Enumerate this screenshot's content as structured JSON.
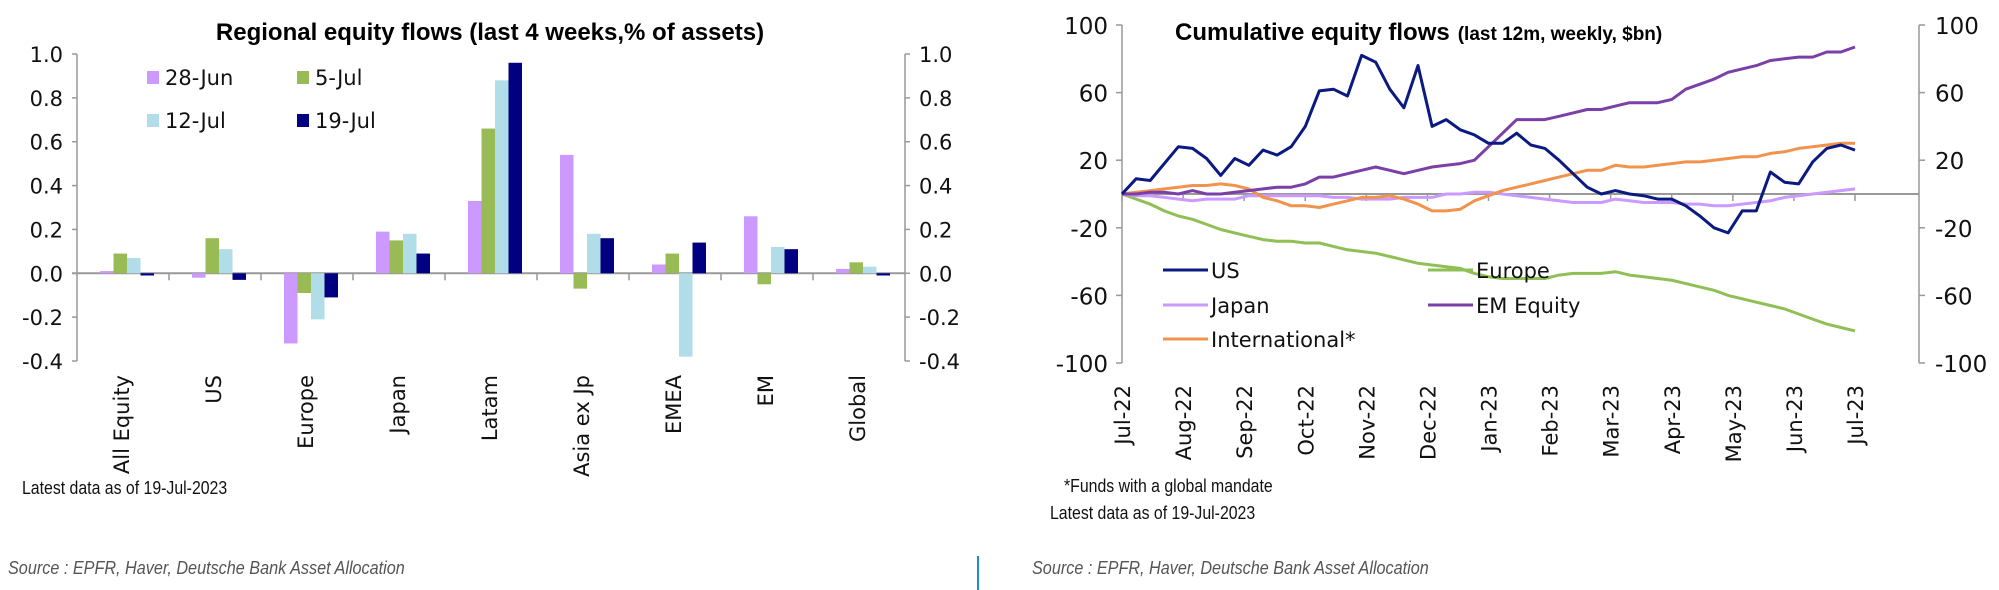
{
  "charts": {
    "left_note": "Latest data as of 19-Jul-2023",
    "left_source": "Source : EPFR, Haver, Deutsche Bank Asset Allocation",
    "right_footnote": "*Funds with a global mandate",
    "right_note": "Latest data as of 19-Jul-2023",
    "right_source": "Source : EPFR, Haver, Deutsche Bank Asset Allocation"
  },
  "chart_data": [
    {
      "type": "bar",
      "title": "Regional equity flows (last 4 weeks,% of assets)",
      "xlabel": "",
      "ylabel": "",
      "ylim": [
        -0.4,
        1.0
      ],
      "yticks": [
        "1.0",
        "0.8",
        "0.6",
        "0.4",
        "0.2",
        "0.0",
        "-0.2",
        "-0.4"
      ],
      "ytick_values": [
        1.0,
        0.8,
        0.6,
        0.4,
        0.2,
        0.0,
        -0.2,
        -0.4
      ],
      "secondary_axis": true,
      "legend_position": "top-left",
      "categories": [
        "All Equity",
        "US",
        "Europe",
        "Japan",
        "Latam",
        "Asia ex Jp",
        "EMEA",
        "EM",
        "Global"
      ],
      "series": [
        {
          "name": "28-Jun",
          "color": "#cc99ff",
          "values": [
            0.01,
            -0.02,
            -0.32,
            0.19,
            0.33,
            0.54,
            0.04,
            0.26,
            0.02
          ]
        },
        {
          "name": "5-Jul",
          "color": "#99bb55",
          "values": [
            0.09,
            0.16,
            -0.09,
            0.15,
            0.66,
            -0.07,
            0.09,
            -0.05,
            0.05
          ]
        },
        {
          "name": "12-Jul",
          "color": "#b0dde8",
          "values": [
            0.07,
            0.11,
            -0.21,
            0.18,
            0.88,
            0.18,
            -0.38,
            0.12,
            0.03
          ]
        },
        {
          "name": "19-Jul",
          "color": "#000080",
          "values": [
            -0.01,
            -0.03,
            -0.11,
            0.09,
            0.96,
            0.16,
            0.14,
            0.11,
            -0.01
          ]
        }
      ]
    },
    {
      "type": "line",
      "title": "Cumulative equity flows",
      "subtitle": "(last 12m, weekly, $bn)",
      "xlabel": "",
      "ylabel": "",
      "ylim": [
        -100,
        100
      ],
      "yticks": [
        "100",
        "60",
        "20",
        "-20",
        "-60",
        "-100"
      ],
      "ytick_values": [
        100,
        60,
        20,
        -20,
        -60,
        -100
      ],
      "secondary_axis": true,
      "legend_position": "bottom-left",
      "x_tick_labels": [
        "Jul-22",
        "Aug-22",
        "Sep-22",
        "Oct-22",
        "Nov-22",
        "Dec-22",
        "Jan-23",
        "Feb-23",
        "Mar-23",
        "Apr-23",
        "May-23",
        "Jun-23",
        "Jul-23"
      ],
      "x_weeks": 53,
      "series": [
        {
          "name": "US",
          "color": "#0a1a80",
          "values": [
            0,
            9,
            8,
            18,
            28,
            27,
            21,
            11,
            21,
            17,
            26,
            23,
            28,
            40,
            61,
            62,
            58,
            82,
            78,
            62,
            51,
            76,
            40,
            44,
            38,
            35,
            30,
            30,
            36,
            29,
            27,
            20,
            12,
            4,
            0,
            2,
            0,
            -1,
            -3,
            -3,
            -7,
            -13,
            -20,
            -23,
            -10,
            -10,
            13,
            7,
            6,
            19,
            27,
            29,
            26
          ]
        },
        {
          "name": "Europe",
          "color": "#8fbf55",
          "values": [
            0,
            -3,
            -6,
            -10,
            -13,
            -15,
            -18,
            -21,
            -23,
            -25,
            -27,
            -28,
            -28,
            -29,
            -29,
            -31,
            -33,
            -34,
            -35,
            -37,
            -39,
            -41,
            -42,
            -43,
            -44,
            -47,
            -49,
            -50,
            -50,
            -50,
            -50,
            -48,
            -47,
            -47,
            -47,
            -46,
            -48,
            -49,
            -50,
            -51,
            -53,
            -55,
            -57,
            -60,
            -62,
            -64,
            -66,
            -68,
            -71,
            -74,
            -77,
            -79,
            -81
          ]
        },
        {
          "name": "Japan",
          "color": "#cc99ff",
          "values": [
            0,
            -1,
            -1,
            -2,
            -3,
            -4,
            -3,
            -3,
            -3,
            -1,
            -1,
            -1,
            -1,
            -1,
            -1,
            -2,
            -2,
            -3,
            -3,
            -3,
            -2,
            -2,
            -2,
            0,
            0,
            1,
            1,
            0,
            -1,
            -2,
            -3,
            -4,
            -5,
            -5,
            -5,
            -3,
            -4,
            -5,
            -5,
            -5,
            -6,
            -6,
            -7,
            -7,
            -6,
            -5,
            -4,
            -2,
            -1,
            0,
            1,
            2,
            3
          ]
        },
        {
          "name": "EM Equity",
          "color": "#7b3fa8",
          "values": [
            0,
            0,
            1,
            1,
            0,
            2,
            0,
            0,
            1,
            2,
            3,
            4,
            4,
            6,
            10,
            10,
            12,
            14,
            16,
            14,
            12,
            14,
            16,
            17,
            18,
            20,
            28,
            36,
            44,
            44,
            44,
            46,
            48,
            50,
            50,
            52,
            54,
            54,
            54,
            56,
            62,
            65,
            68,
            72,
            74,
            76,
            79,
            80,
            81,
            81,
            84,
            84,
            87
          ]
        },
        {
          "name": "International*",
          "color": "#f0944d",
          "values": [
            0,
            1,
            2,
            3,
            4,
            5,
            5,
            6,
            5,
            3,
            -2,
            -4,
            -7,
            -7,
            -8,
            -6,
            -4,
            -2,
            -2,
            -1,
            -3,
            -6,
            -10,
            -10,
            -9,
            -4,
            -1,
            2,
            4,
            6,
            8,
            10,
            12,
            14,
            14,
            17,
            16,
            16,
            17,
            18,
            19,
            19,
            20,
            21,
            22,
            22,
            24,
            25,
            27,
            28,
            29,
            30,
            30
          ]
        }
      ]
    }
  ]
}
